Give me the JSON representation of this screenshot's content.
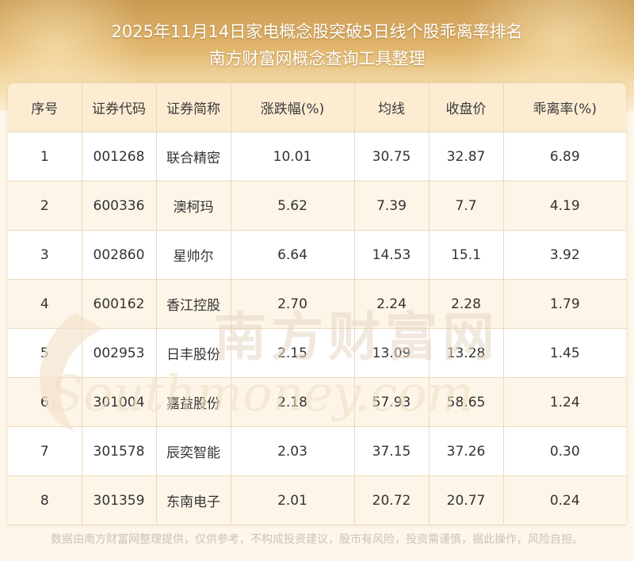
{
  "header": {
    "title_line1": "2025年11月14日家电概念股突破5日线个股乖离率排名",
    "title_line2": "南方财富网概念查询工具整理"
  },
  "table": {
    "columns": [
      "序号",
      "证券代码",
      "证券简称",
      "涨跌幅(%)",
      "均线",
      "收盘价",
      "乖离率(%)"
    ],
    "rows": [
      [
        "1",
        "001268",
        "联合精密",
        "10.01",
        "30.75",
        "32.87",
        "6.89"
      ],
      [
        "2",
        "600336",
        "澳柯玛",
        "5.62",
        "7.39",
        "7.7",
        "4.19"
      ],
      [
        "3",
        "002860",
        "星帅尔",
        "6.64",
        "14.53",
        "15.1",
        "3.92"
      ],
      [
        "4",
        "600162",
        "香江控股",
        "2.70",
        "2.24",
        "2.28",
        "1.79"
      ],
      [
        "5",
        "002953",
        "日丰股份",
        "2.15",
        "13.09",
        "13.28",
        "1.45"
      ],
      [
        "6",
        "301004",
        "嘉益股份",
        "2.18",
        "57.93",
        "58.65",
        "1.24"
      ],
      [
        "7",
        "301578",
        "辰奕智能",
        "2.03",
        "37.15",
        "37.26",
        "0.30"
      ],
      [
        "8",
        "301359",
        "东南电子",
        "2.01",
        "20.72",
        "20.77",
        "0.24"
      ]
    ]
  },
  "watermark": {
    "cn": "南方财富网",
    "en": "Southmoney.com"
  },
  "footer": {
    "disclaimer": "数据由南方财富网整理提供，仅供参考，不构成投资建议，股市有风险，投资需谨慎，据此操作，风险自担。"
  },
  "colors": {
    "header_gold": "#d9aa60",
    "table_header_bg": "#fbecd2",
    "row_alt_bg": "#fdf5e7",
    "border": "#ead9bd",
    "watermark": "#e9dccb"
  }
}
